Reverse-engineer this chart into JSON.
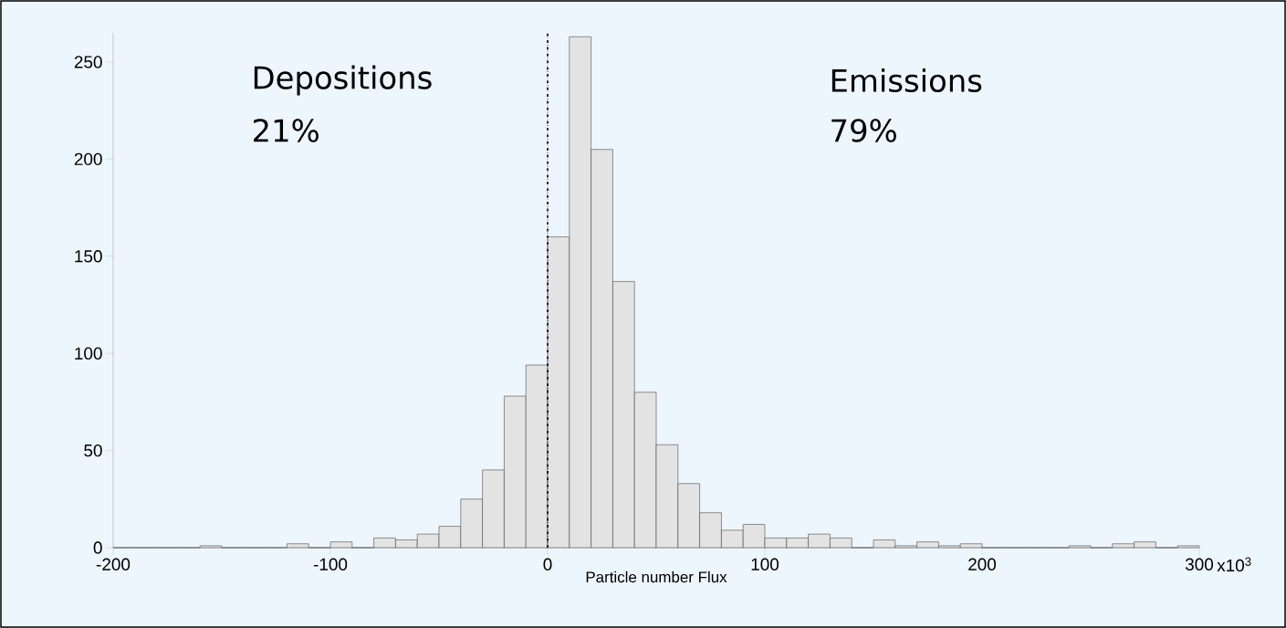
{
  "chart_data": {
    "type": "histogram",
    "xlabel": "Particle number Flux",
    "bins": [
      -200,
      -190,
      -180,
      -170,
      -160,
      -150,
      -140,
      -130,
      -120,
      -110,
      -100,
      -90,
      -80,
      -70,
      -60,
      -50,
      -40,
      -30,
      -20,
      -10,
      0,
      10,
      20,
      30,
      40,
      50,
      60,
      70,
      80,
      90,
      100,
      110,
      120,
      130,
      140,
      150,
      160,
      170,
      180,
      190,
      200,
      210,
      220,
      230,
      240,
      250,
      260,
      270,
      280,
      290,
      300
    ],
    "values": [
      0,
      0,
      0,
      0,
      1,
      0,
      0,
      0,
      2,
      0,
      3,
      0,
      5,
      4,
      7,
      11,
      25,
      40,
      78,
      94,
      160,
      263,
      205,
      137,
      80,
      53,
      33,
      18,
      9,
      12,
      5,
      5,
      7,
      5,
      0,
      4,
      1,
      3,
      1,
      2,
      0,
      0,
      0,
      0,
      1,
      0,
      2,
      3,
      0,
      1
    ],
    "color": "#e3e3e3",
    "xlim": [
      -200,
      300
    ],
    "xticks": [
      -200,
      -100,
      0,
      100,
      200,
      300
    ],
    "ylim": [
      0,
      265
    ],
    "yticks": [
      0,
      50,
      100,
      150,
      200,
      250
    ],
    "ref_lines": [
      {
        "axis": "x",
        "value": 0,
        "line_style": "dashdot",
        "color": "#000000"
      }
    ],
    "annotations": [
      "Depositions",
      "21%",
      "Emissions",
      "79%",
      "x10$^{3}$"
    ]
  }
}
